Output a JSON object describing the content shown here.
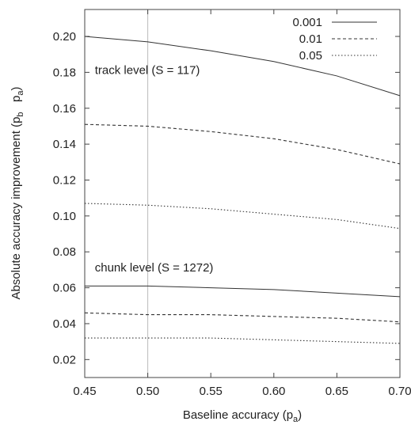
{
  "chart_data": {
    "type": "line",
    "xlabel_main": "Baseline accuracy (p",
    "xlabel_sub": "a",
    "xlabel_close": ")",
    "ylabel_main": "Absolute accuracy improvement (p",
    "ylabel_sub1": "b",
    "ylabel_mid": "   p",
    "ylabel_sub2": "a",
    "ylabel_close": ")",
    "xlim": [
      0.45,
      0.7
    ],
    "ylim": [
      0.01,
      0.215
    ],
    "xticks": [
      "0.45",
      "0.50",
      "0.55",
      "0.60",
      "0.65",
      "0.70"
    ],
    "yticks": [
      "0.02",
      "0.04",
      "0.06",
      "0.08",
      "0.10",
      "0.12",
      "0.14",
      "0.16",
      "0.18",
      "0.20"
    ],
    "reference_line_x": 0.5,
    "legend_position": "top-right",
    "legend": [
      {
        "label": "0.001",
        "style": "solid"
      },
      {
        "label": "0.01",
        "style": "dashed"
      },
      {
        "label": "0.05",
        "style": "dotted"
      }
    ],
    "annotations": [
      {
        "text": "track level (S = 117)",
        "x": 0.458,
        "y": 0.179
      },
      {
        "text": "chunk level (S = 1272)",
        "x": 0.458,
        "y": 0.069
      }
    ],
    "x": [
      0.45,
      0.5,
      0.55,
      0.6,
      0.65,
      0.7
    ],
    "series": [
      {
        "group": "track",
        "style": "solid",
        "values": [
          0.2,
          0.197,
          0.192,
          0.186,
          0.178,
          0.167
        ]
      },
      {
        "group": "track",
        "style": "dashed",
        "values": [
          0.151,
          0.15,
          0.147,
          0.143,
          0.137,
          0.129
        ]
      },
      {
        "group": "track",
        "style": "dotted",
        "values": [
          0.107,
          0.106,
          0.104,
          0.101,
          0.098,
          0.093
        ]
      },
      {
        "group": "chunk",
        "style": "solid",
        "values": [
          0.061,
          0.061,
          0.06,
          0.059,
          0.057,
          0.055
        ]
      },
      {
        "group": "chunk",
        "style": "dashed",
        "values": [
          0.046,
          0.045,
          0.045,
          0.044,
          0.043,
          0.041
        ]
      },
      {
        "group": "chunk",
        "style": "dotted",
        "values": [
          0.032,
          0.032,
          0.032,
          0.031,
          0.03,
          0.029
        ]
      }
    ]
  }
}
